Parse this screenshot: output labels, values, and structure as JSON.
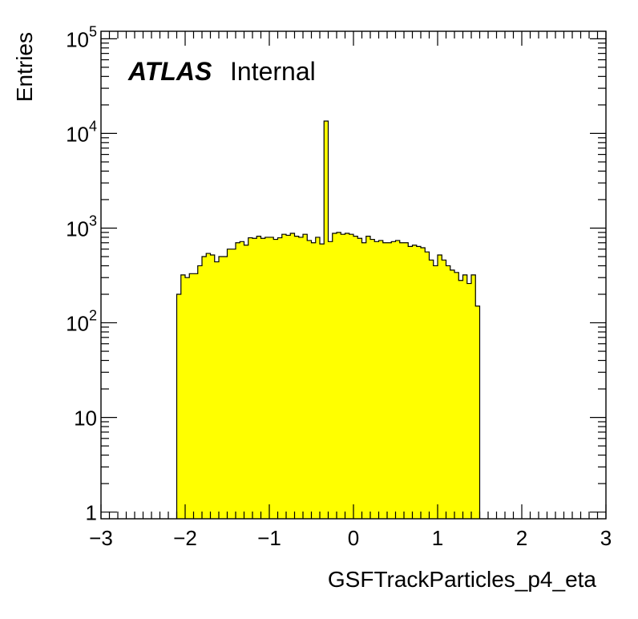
{
  "chart_data": {
    "type": "histogram",
    "xlabel": "GSFTrackParticles_p4_eta",
    "ylabel": "Entries",
    "xlim": [
      -3,
      3
    ],
    "ylim": [
      0.85,
      120000
    ],
    "yscale": "log",
    "x_ticks": [
      {
        "value": -3,
        "label": "−3"
      },
      {
        "value": -2,
        "label": "−2"
      },
      {
        "value": -1,
        "label": "−1"
      },
      {
        "value": 0,
        "label": "0"
      },
      {
        "value": 1,
        "label": "1"
      },
      {
        "value": 2,
        "label": "2"
      },
      {
        "value": 3,
        "label": "3"
      }
    ],
    "y_ticks": [
      {
        "value": 1,
        "base": "1",
        "exp": ""
      },
      {
        "value": 10,
        "base": "10",
        "exp": ""
      },
      {
        "value": 100,
        "base": "10",
        "exp": "2"
      },
      {
        "value": 1000,
        "base": "10",
        "exp": "3"
      },
      {
        "value": 10000,
        "base": "10",
        "exp": "4"
      },
      {
        "value": 100000,
        "base": "10",
        "exp": "5"
      }
    ],
    "fill_color": "#ffff00",
    "line_color": "#000000",
    "bin_edges_start": -2.1,
    "bin_width": 0.05,
    "counts": [
      200,
      320,
      300,
      330,
      330,
      400,
      500,
      540,
      520,
      440,
      500,
      500,
      600,
      600,
      700,
      720,
      660,
      790,
      780,
      820,
      780,
      800,
      800,
      760,
      790,
      860,
      840,
      880,
      820,
      800,
      860,
      740,
      700,
      800,
      680,
      13500,
      720,
      880,
      900,
      860,
      880,
      860,
      820,
      780,
      700,
      820,
      760,
      720,
      740,
      700,
      700,
      720,
      740,
      700,
      700,
      640,
      660,
      640,
      620,
      560,
      460,
      400,
      520,
      460,
      400,
      360,
      340,
      280,
      320,
      260,
      320,
      150
    ],
    "annotations": {
      "experiment": "ATLAS",
      "status": "Internal"
    }
  }
}
